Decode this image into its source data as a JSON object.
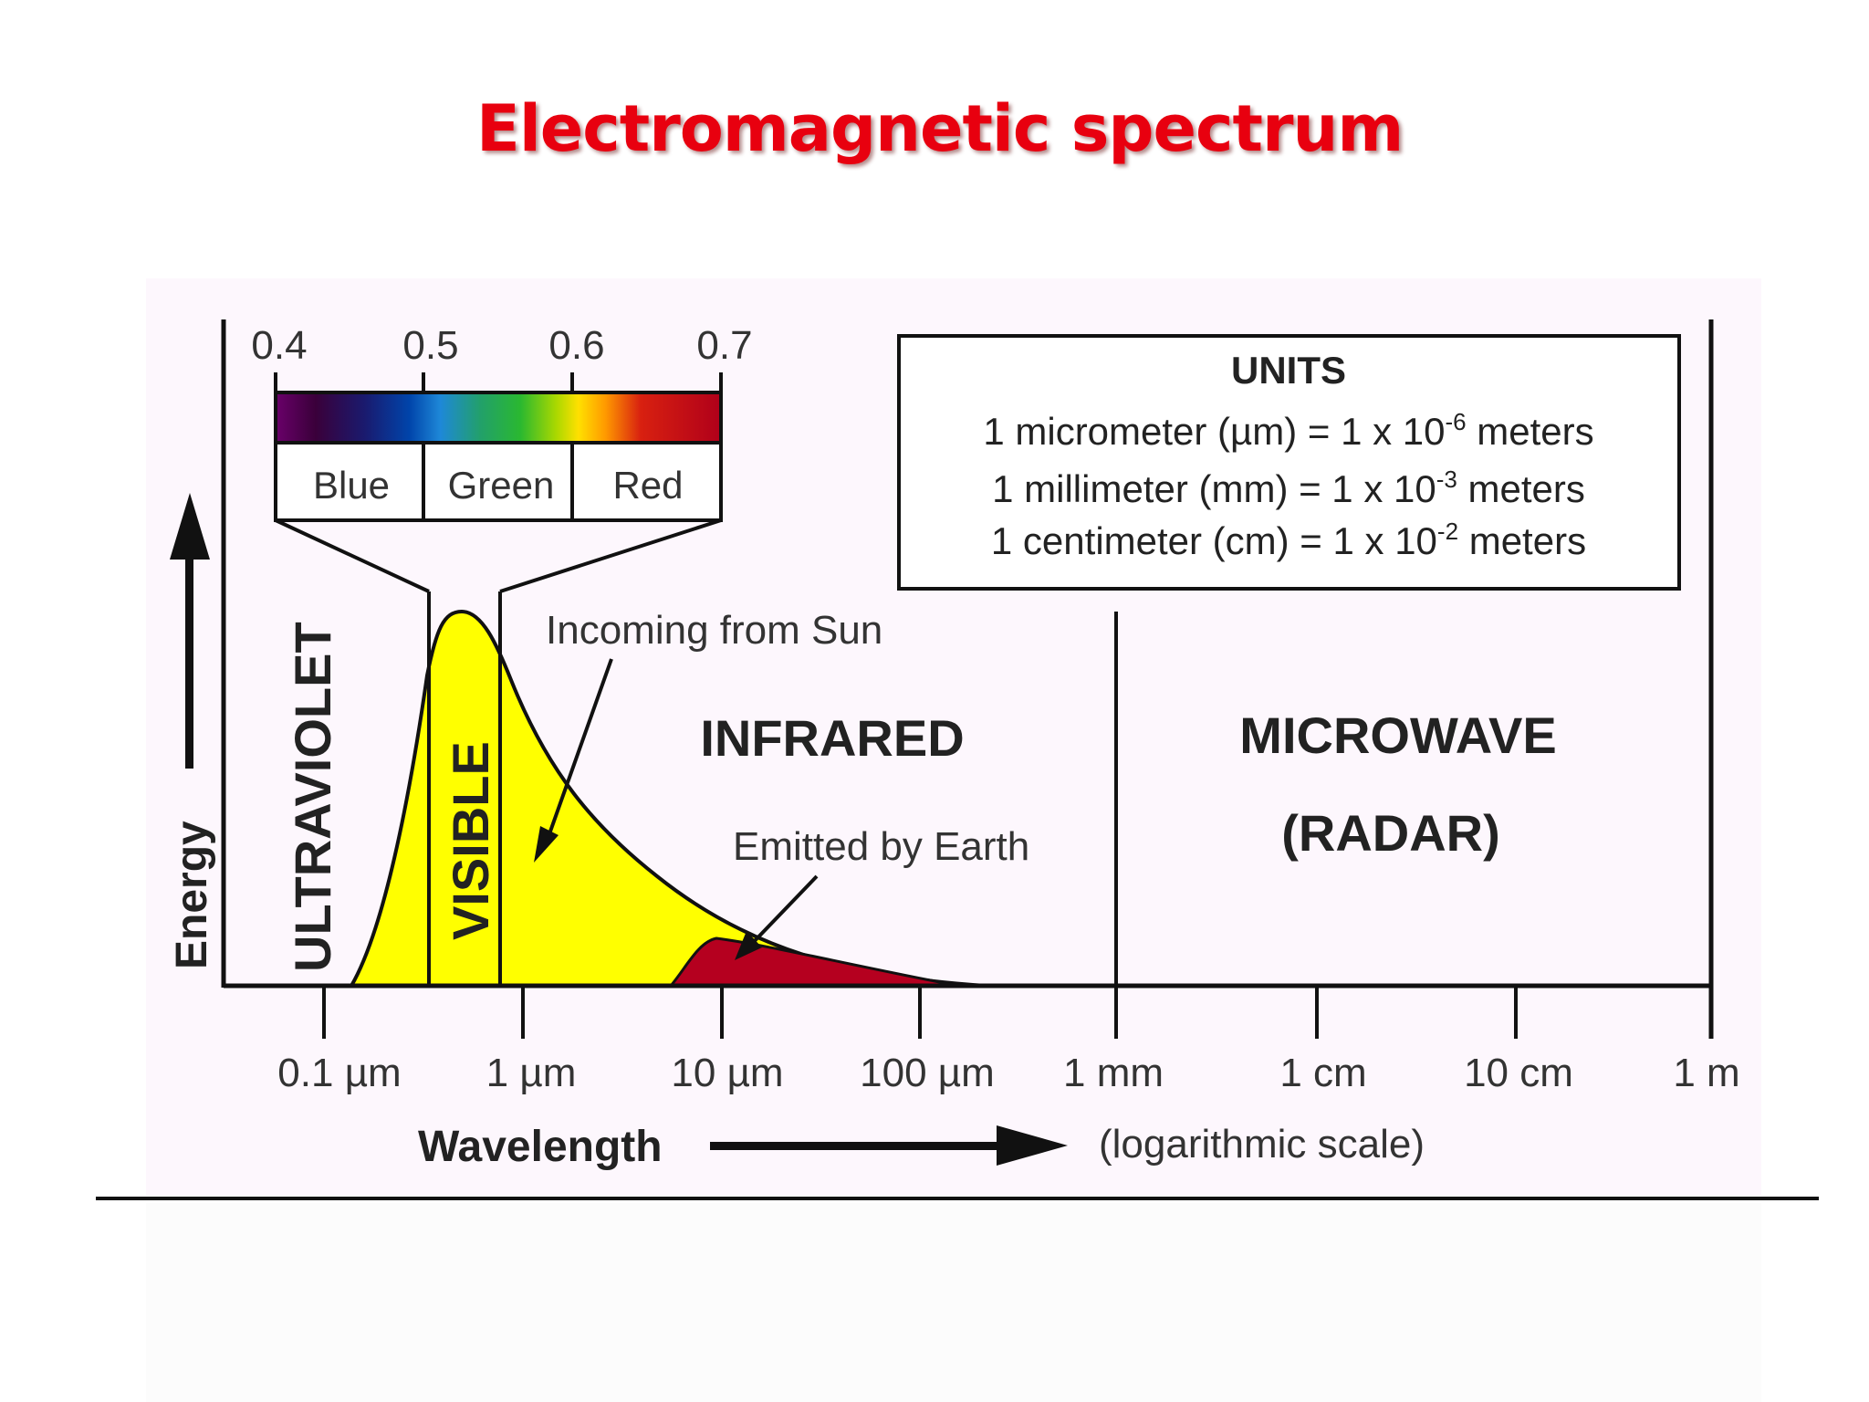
{
  "title": "Electromagnetic spectrum",
  "colors": {
    "title": "#e8000f",
    "panel_background": "#fdf7fd",
    "sun_curve_fill": "#ffff00",
    "earth_curve_fill": "#b5001f",
    "line": "#111111"
  },
  "visible_scale": {
    "ticks": [
      "0.4",
      "0.5",
      "0.6",
      "0.7"
    ],
    "bands": [
      "Blue",
      "Green",
      "Red"
    ]
  },
  "units_box": {
    "heading": "UNITS",
    "rows": [
      {
        "prefix": "1 micrometer (µm) = 1 x 10",
        "exp": "-6",
        "suffix": " meters"
      },
      {
        "prefix": "1 millimeter (mm) = 1 x 10",
        "exp": "-3",
        "suffix": " meters"
      },
      {
        "prefix": "1 centimeter (cm) = 1 x 10",
        "exp": "-2",
        "suffix": " meters"
      }
    ]
  },
  "regions": {
    "ultraviolet": "ULTRAVIOLET",
    "visible": "VISIBLE",
    "infrared": "INFRARED",
    "microwave_line1": "MICROWAVE",
    "microwave_line2": "(RADAR)"
  },
  "annotations": {
    "sun": "Incoming from Sun",
    "earth": "Emitted by Earth"
  },
  "axes": {
    "y_label": "Energy",
    "x_label": "Wavelength",
    "x_note": "(logarithmic scale)",
    "x_ticks": [
      "0.1 µm",
      "1 µm",
      "10 µm",
      "100 µm",
      "1 mm",
      "1 cm",
      "10 cm",
      "1 m"
    ]
  }
}
